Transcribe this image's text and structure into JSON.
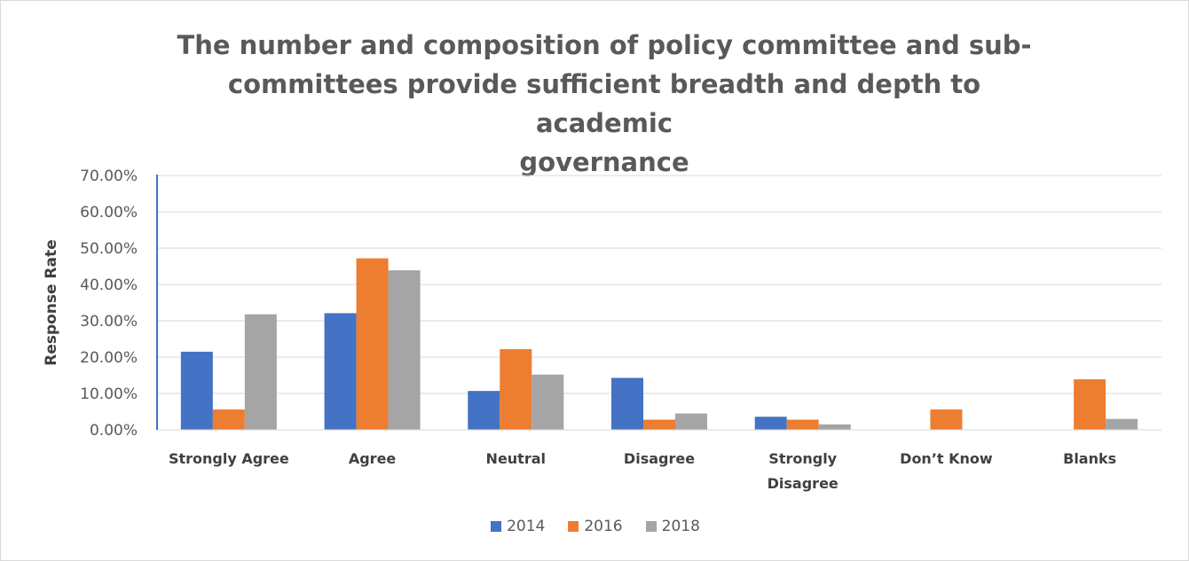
{
  "chart_data": {
    "type": "bar",
    "title": "The number and composition of policy committee and sub-committees provide sufficient breadth and depth to academic governance",
    "title_lines": [
      "The number and composition of policy committee and sub-",
      "committees provide sufficient breadth and depth to academic",
      "governance"
    ],
    "xlabel": "",
    "ylabel": "Response Rate",
    "ylim": [
      0,
      0.7
    ],
    "yticks": [
      0,
      0.1,
      0.2,
      0.3,
      0.4,
      0.5,
      0.6,
      0.7
    ],
    "ytick_labels": [
      "0.00%",
      "10.00%",
      "20.00%",
      "30.00%",
      "40.00%",
      "50.00%",
      "60.00%",
      "70.00%"
    ],
    "grid": true,
    "legend_position": "bottom",
    "categories": [
      "Strongly Agree",
      "Agree",
      "Neutral",
      "Disagree",
      "Strongly Disagree",
      "Don’t Know",
      "Blanks"
    ],
    "category_label_lines": [
      [
        "Strongly Agree"
      ],
      [
        "Agree"
      ],
      [
        "Neutral"
      ],
      [
        "Disagree"
      ],
      [
        "Strongly",
        "Disagree"
      ],
      [
        "Don’t Know"
      ],
      [
        "Blanks"
      ]
    ],
    "series": [
      {
        "name": "2014",
        "color": "#4472c4",
        "values": [
          0.215,
          0.321,
          0.107,
          0.143,
          0.036,
          0.0,
          0.0
        ]
      },
      {
        "name": "2016",
        "color": "#ed7d31",
        "values": [
          0.056,
          0.472,
          0.222,
          0.028,
          0.028,
          0.056,
          0.139
        ]
      },
      {
        "name": "2018",
        "color": "#a5a5a5",
        "values": [
          0.318,
          0.439,
          0.152,
          0.045,
          0.015,
          0.0,
          0.03
        ]
      }
    ]
  }
}
